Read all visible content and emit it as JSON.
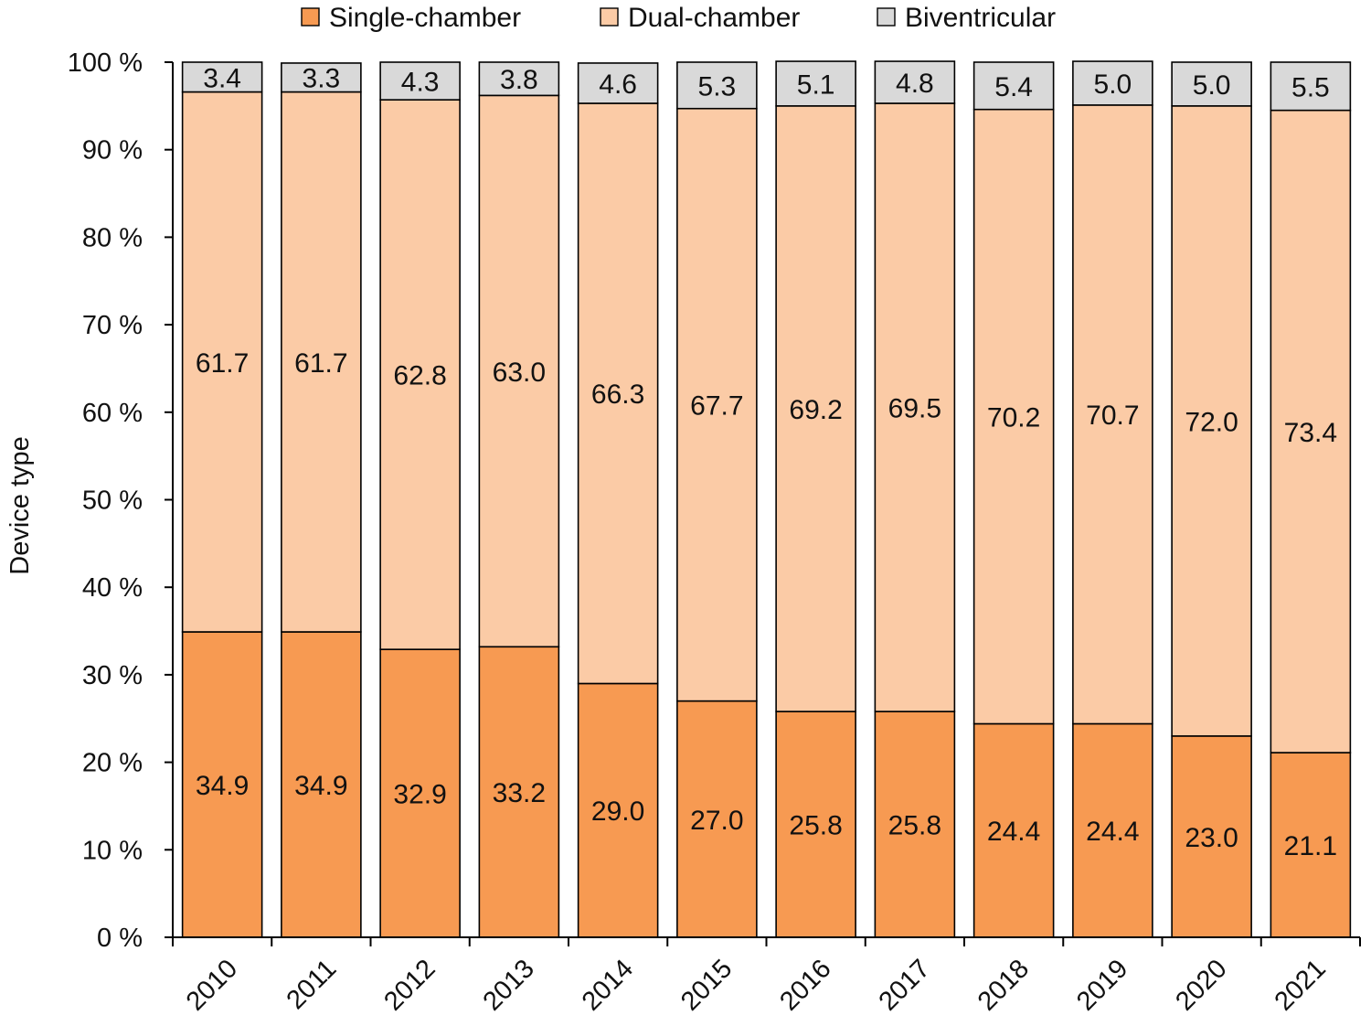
{
  "chart_data": {
    "type": "bar",
    "stacked": true,
    "title": "",
    "xlabel": "",
    "ylabel": "Device type",
    "ylim": [
      0,
      100
    ],
    "yticks": [
      "0 %",
      "10 %",
      "20 %",
      "30 %",
      "40 %",
      "50 %",
      "60 %",
      "70 %",
      "80 %",
      "90 %",
      "100 %"
    ],
    "categories": [
      "2010",
      "2011",
      "2012",
      "2013",
      "2014",
      "2015",
      "2016",
      "2017",
      "2018",
      "2019",
      "2020",
      "2021"
    ],
    "series": [
      {
        "name": "Single-chamber",
        "color": "#F79A52",
        "values": [
          34.9,
          34.9,
          32.9,
          33.2,
          29.0,
          27.0,
          25.8,
          25.8,
          24.4,
          24.4,
          23.0,
          21.1
        ],
        "labels": [
          "34.9",
          "34.9",
          "32.9",
          "33.2",
          "29.0",
          "27.0",
          "25.8",
          "25.8",
          "24.4",
          "24.4",
          "23.0",
          "21.1"
        ]
      },
      {
        "name": "Dual-chamber",
        "color": "#FBCBA6",
        "values": [
          61.7,
          61.7,
          62.8,
          63.0,
          66.3,
          67.7,
          69.2,
          69.5,
          70.2,
          70.7,
          72.0,
          73.4
        ],
        "labels": [
          "61.7",
          "61.7",
          "62.8",
          "63.0",
          "66.3",
          "67.7",
          "69.2",
          "69.5",
          "70.2",
          "70.7",
          "72.0",
          "73.4"
        ]
      },
      {
        "name": "Biventricular",
        "color": "#D9D9D9",
        "values": [
          3.4,
          3.3,
          4.3,
          3.8,
          4.6,
          5.3,
          5.1,
          4.8,
          5.4,
          5.0,
          5.0,
          5.5
        ],
        "labels": [
          "3.4",
          "3.3",
          "4.3",
          "3.8",
          "4.6",
          "5.3",
          "5.1",
          "4.8",
          "5.4",
          "5.0",
          "5.0",
          "5.5"
        ]
      }
    ],
    "legend": {
      "position": "top",
      "items": [
        "Single-chamber",
        "Dual-chamber",
        "Biventricular"
      ]
    }
  }
}
